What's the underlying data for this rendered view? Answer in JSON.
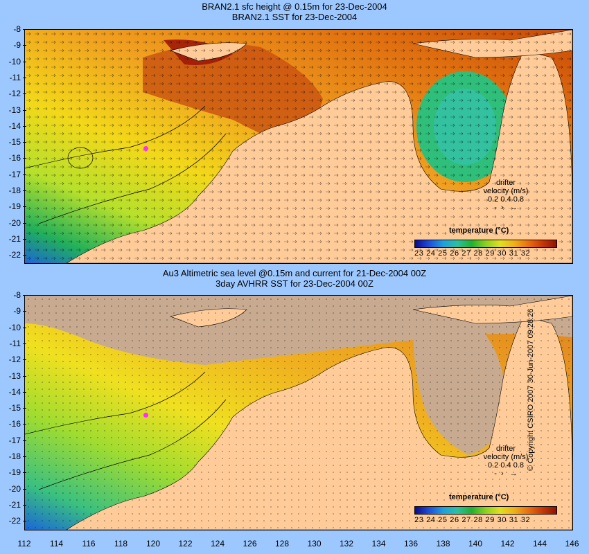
{
  "top": {
    "title_line1": "BRAN2.1 sfc height @ 0.15m for 23-Dec-2004",
    "title_line2": "BRAN2.1 SST for 23-Dec-2004"
  },
  "bottom": {
    "title_line1": "Au3 Altimetric sea level  @0.15m and current for 21-Dec-2004 00Z",
    "title_line2": "3day AVHRR SST for 23-Dec-2004 00Z"
  },
  "y_ticks": [
    "-8",
    "-9",
    "-10",
    "-11",
    "-12",
    "-13",
    "-14",
    "-15",
    "-16",
    "-17",
    "-18",
    "-19",
    "-20",
    "-21",
    "-22"
  ],
  "x_ticks": [
    "112",
    "114",
    "116",
    "118",
    "120",
    "122",
    "124",
    "126",
    "128",
    "130",
    "132",
    "134",
    "136",
    "138",
    "140",
    "142",
    "144",
    "146"
  ],
  "legend": {
    "title": "temperature (°C)",
    "labels": "23 24 25 26 27 28 29 30 31 32",
    "drifter_title": "drifter",
    "velocity_label": "velocity (m/s)",
    "velocity_scale": "0.2 0.4 0.8"
  },
  "colors": {
    "land": "#ffcc99",
    "shelf_land": "#c8aa90",
    "marker": "#ff2bff",
    "background": "#9dc8ff"
  },
  "copyright": "© Copyright CSIRO 2007  30-Jun-2007 09:28:26"
}
